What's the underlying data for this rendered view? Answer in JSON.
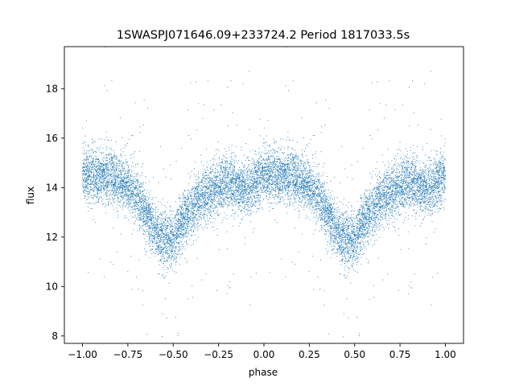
{
  "chart_data": {
    "type": "scatter",
    "title": "1SWASPJ071646.09+233724.2 Period 1817033.5s",
    "xlabel": "phase",
    "ylabel": "flux",
    "xlim": [
      -1.1,
      1.1
    ],
    "ylim": [
      7.7,
      19.7
    ],
    "x_ticks": [
      -1.0,
      -0.75,
      -0.5,
      -0.25,
      0.0,
      0.25,
      0.5,
      0.75,
      1.0
    ],
    "x_tick_labels": [
      "−1.00",
      "−0.75",
      "−0.50",
      "−0.25",
      "0.00",
      "0.25",
      "0.50",
      "0.75",
      "1.00"
    ],
    "y_ticks": [
      8,
      10,
      12,
      14,
      16,
      18
    ],
    "y_tick_labels": [
      "8",
      "10",
      "12",
      "14",
      "16",
      "18"
    ],
    "grid": false,
    "legend": "none",
    "point_color": "#1f77b4",
    "series": [
      {
        "profile": {
          "phase": [
            0.0,
            0.05,
            0.1,
            0.15,
            0.2,
            0.25,
            0.3,
            0.35,
            0.4,
            0.45,
            0.5,
            0.55,
            0.6,
            0.65,
            0.7,
            0.75,
            0.8,
            0.85,
            0.9,
            0.95,
            1.0
          ],
          "flux": [
            14.6,
            14.5,
            14.4,
            14.5,
            14.3,
            14.0,
            13.7,
            13.0,
            12.2,
            11.9,
            12.0,
            12.6,
            13.1,
            13.6,
            13.8,
            14.0,
            14.2,
            14.1,
            13.9,
            14.2,
            14.5
          ]
        },
        "scatter": 0.55,
        "points_per_cycle": 6000
      }
    ]
  }
}
